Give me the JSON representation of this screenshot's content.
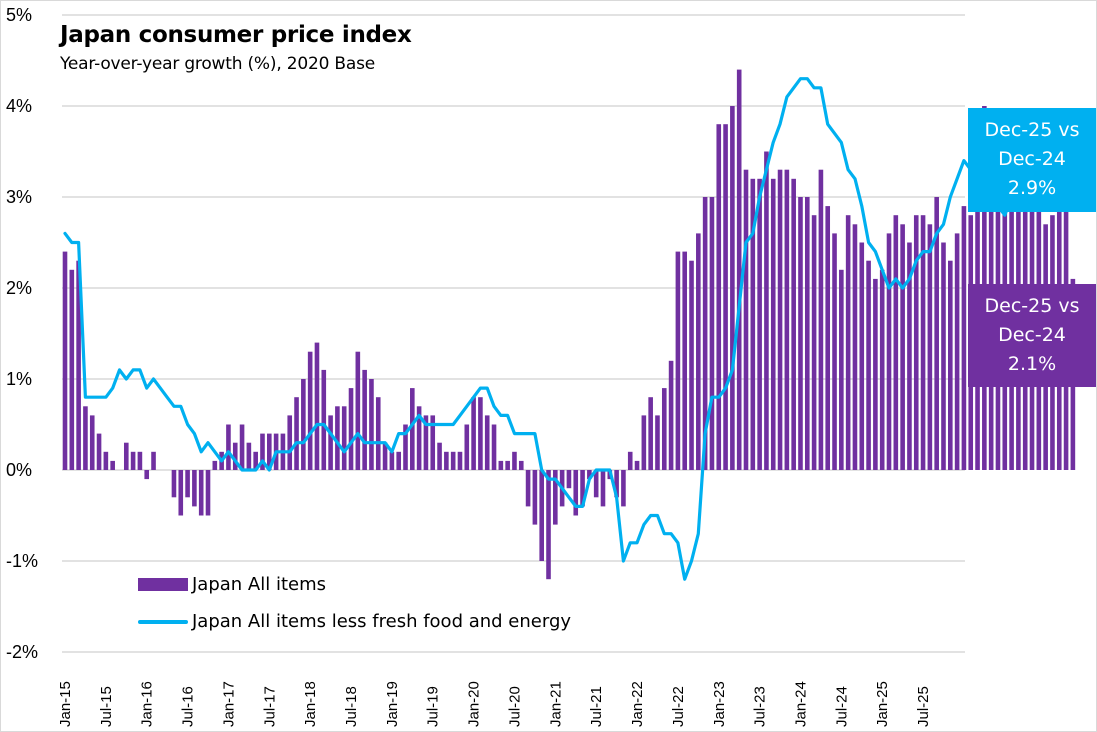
{
  "chart_data": {
    "type": "bar",
    "title": "Japan consumer price index",
    "subtitle": "Year-over-year growth (%), 2020 Base",
    "xlabel": "",
    "ylabel": "",
    "ylim": [
      -2,
      5
    ],
    "yticks": [
      -2,
      -1,
      0,
      1,
      2,
      3,
      4,
      5
    ],
    "ytick_labels": [
      "-2%",
      "-1%",
      "0%",
      "1%",
      "2%",
      "3%",
      "4%",
      "5%"
    ],
    "grid": true,
    "x_start": "Jan-15",
    "x_end": "Dec-25",
    "xtick_labels": [
      "Jan-15",
      "Jul-15",
      "Jan-16",
      "Jul-16",
      "Jan-17",
      "Jul-17",
      "Jan-18",
      "Jul-18",
      "Jan-19",
      "Jul-19",
      "Jan-20",
      "Jul-20",
      "Jan-21",
      "Jul-21",
      "Jan-22",
      "Jul-22",
      "Jan-23",
      "Jul-23",
      "Jan-24",
      "Jul-24",
      "Jan-25",
      "Jul-25"
    ],
    "legend_position": "bottom-left",
    "series": [
      {
        "name": "Japan All items",
        "kind": "bar",
        "color": "#7030a0",
        "values": [
          2.4,
          2.2,
          2.3,
          0.7,
          0.6,
          0.4,
          0.2,
          0.1,
          0.0,
          0.3,
          0.2,
          0.2,
          -0.1,
          0.2,
          0.0,
          0.0,
          -0.3,
          -0.5,
          -0.3,
          -0.4,
          -0.5,
          -0.5,
          0.1,
          0.2,
          0.5,
          0.3,
          0.5,
          0.3,
          0.2,
          0.4,
          0.4,
          0.4,
          0.4,
          0.6,
          0.8,
          1.0,
          1.3,
          1.4,
          1.1,
          0.6,
          0.7,
          0.7,
          0.9,
          1.3,
          1.1,
          1.0,
          0.8,
          0.3,
          0.2,
          0.2,
          0.5,
          0.9,
          0.7,
          0.6,
          0.6,
          0.3,
          0.2,
          0.2,
          0.2,
          0.5,
          0.8,
          0.8,
          0.6,
          0.5,
          0.1,
          0.1,
          0.2,
          0.1,
          -0.4,
          -0.6,
          -1.0,
          -1.2,
          -0.6,
          -0.4,
          -0.2,
          -0.5,
          -0.4,
          -0.1,
          -0.3,
          -0.4,
          -0.1,
          -0.3,
          -0.4,
          0.2,
          0.1,
          0.6,
          0.8,
          0.6,
          0.9,
          1.2,
          2.4,
          2.4,
          2.3,
          2.6,
          3.0,
          3.0,
          3.8,
          3.8,
          4.0,
          4.4,
          3.3,
          3.2,
          3.2,
          3.5,
          3.2,
          3.3,
          3.3,
          3.2,
          3.0,
          3.0,
          2.8,
          3.3,
          2.9,
          2.6,
          2.2,
          2.8,
          2.7,
          2.5,
          2.3,
          2.1,
          2.2,
          2.6,
          2.8,
          2.7,
          2.5,
          2.8,
          2.8,
          2.7,
          3.0,
          2.5,
          2.3,
          2.6,
          2.9,
          2.8,
          3.6,
          4.0,
          3.6,
          3.6,
          3.5,
          3.5,
          3.4,
          3.3,
          3.0,
          3.0,
          2.7,
          2.8,
          2.9,
          2.9,
          2.1
        ]
      },
      {
        "name": "Japan All items less fresh food and energy",
        "kind": "line",
        "color": "#00b0f0",
        "values": [
          2.6,
          2.5,
          2.5,
          0.8,
          0.8,
          0.8,
          0.8,
          0.9,
          1.1,
          1.0,
          1.1,
          1.1,
          0.9,
          1.0,
          0.9,
          0.8,
          0.7,
          0.7,
          0.5,
          0.4,
          0.2,
          0.3,
          0.2,
          0.1,
          0.2,
          0.1,
          0.0,
          0.0,
          0.0,
          0.1,
          0.0,
          0.2,
          0.2,
          0.2,
          0.3,
          0.3,
          0.4,
          0.5,
          0.5,
          0.4,
          0.3,
          0.2,
          0.3,
          0.4,
          0.3,
          0.3,
          0.3,
          0.3,
          0.2,
          0.4,
          0.4,
          0.5,
          0.6,
          0.5,
          0.5,
          0.5,
          0.5,
          0.5,
          0.6,
          0.7,
          0.8,
          0.9,
          0.9,
          0.7,
          0.6,
          0.6,
          0.4,
          0.4,
          0.4,
          0.4,
          0.0,
          -0.1,
          -0.1,
          -0.2,
          -0.3,
          -0.4,
          -0.4,
          -0.1,
          0.0,
          0.0,
          0.0,
          -0.3,
          -1.0,
          -0.8,
          -0.8,
          -0.6,
          -0.5,
          -0.5,
          -0.7,
          -0.7,
          -0.8,
          -1.2,
          -1.0,
          -0.7,
          0.4,
          0.8,
          0.8,
          0.9,
          1.1,
          1.8,
          2.5,
          2.6,
          3.0,
          3.3,
          3.6,
          3.8,
          4.1,
          4.2,
          4.3,
          4.3,
          4.2,
          4.2,
          3.8,
          3.7,
          3.6,
          3.3,
          3.2,
          2.9,
          2.5,
          2.4,
          2.2,
          2.0,
          2.1,
          2.0,
          2.1,
          2.3,
          2.4,
          2.4,
          2.6,
          2.7,
          3.0,
          3.2,
          3.4,
          3.3,
          3.2,
          3.1,
          3.0,
          2.9,
          2.8,
          3.0,
          3.1,
          3.0,
          2.9,
          2.9,
          2.9,
          2.9,
          2.9,
          2.9,
          2.9
        ]
      }
    ],
    "annotations": [
      {
        "series": "Japan All items less fresh food and energy",
        "lines": [
          "Dec-25 vs",
          "Dec-24",
          "2.9%"
        ],
        "color": "#00b0f0",
        "text_color": "#ffffff"
      },
      {
        "series": "Japan All items",
        "lines": [
          "Dec-25 vs",
          "Dec-24",
          "2.1%"
        ],
        "color": "#7030a0",
        "text_color": "#ffffff"
      }
    ]
  },
  "legend": {
    "bar_label": "Japan All items",
    "line_label": "Japan All items less fresh food and energy"
  },
  "colors": {
    "all_items": "#7030a0",
    "core": "#00b0f0",
    "grid": "#d9d9d9"
  }
}
